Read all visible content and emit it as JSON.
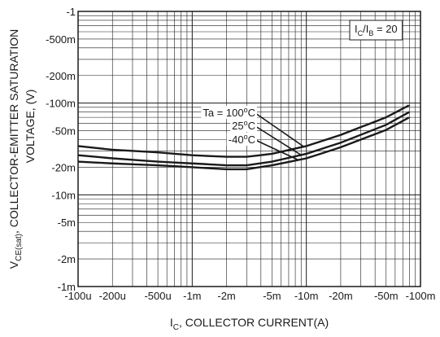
{
  "chart_data": {
    "type": "line",
    "x_scale": "log",
    "y_scale": "log",
    "xlabel_main": "I",
    "xlabel_sub": "C",
    "xlabel_rest": ", COLLECTOR CURRENT(A)",
    "ylabel_line1_main": "V",
    "ylabel_line1_sub": "CE(sat)",
    "ylabel_line1_rest": ",  COLLECTOR-EMITTER SATURATION",
    "ylabel_line2": "VOLTAGE, (V)",
    "xlim": [
      0.0001,
      0.1
    ],
    "ylim": [
      0.001,
      1
    ],
    "grid": true,
    "x_ticks": [
      {
        "v": 0.0001,
        "label": "-100u"
      },
      {
        "v": 0.0002,
        "label": "-200u"
      },
      {
        "v": 0.0005,
        "label": "-500u"
      },
      {
        "v": 0.001,
        "label": "-1m"
      },
      {
        "v": 0.002,
        "label": "-2m"
      },
      {
        "v": 0.005,
        "label": "-5m"
      },
      {
        "v": 0.01,
        "label": "-10m"
      },
      {
        "v": 0.02,
        "label": "-20m"
      },
      {
        "v": 0.05,
        "label": "-50m"
      },
      {
        "v": 0.1,
        "label": "-100m"
      }
    ],
    "y_ticks": [
      {
        "v": 1,
        "label": "-1"
      },
      {
        "v": 0.5,
        "label": "-500m"
      },
      {
        "v": 0.2,
        "label": "-200m"
      },
      {
        "v": 0.1,
        "label": "-100m"
      },
      {
        "v": 0.05,
        "label": "-50m"
      },
      {
        "v": 0.02,
        "label": "-20m"
      },
      {
        "v": 0.01,
        "label": "-10m"
      },
      {
        "v": 0.005,
        "label": "-5m"
      },
      {
        "v": 0.002,
        "label": "-2m"
      },
      {
        "v": 0.001,
        "label": "-1m"
      }
    ],
    "condition": {
      "main": "I",
      "sub1": "C",
      "slash": "/I",
      "sub2": "B",
      "rest": " = 20"
    },
    "series": [
      {
        "name": "Ta = 100°C",
        "x": [
          0.0001,
          0.0002,
          0.0005,
          0.001,
          0.002,
          0.003,
          0.005,
          0.01,
          0.02,
          0.05,
          0.08
        ],
        "y": [
          0.034,
          0.031,
          0.029,
          0.027,
          0.026,
          0.026,
          0.028,
          0.034,
          0.045,
          0.07,
          0.095
        ]
      },
      {
        "name": "25°C",
        "x": [
          0.0001,
          0.0002,
          0.0005,
          0.001,
          0.002,
          0.003,
          0.005,
          0.01,
          0.02,
          0.05,
          0.08
        ],
        "y": [
          0.027,
          0.025,
          0.023,
          0.022,
          0.021,
          0.021,
          0.023,
          0.028,
          0.037,
          0.058,
          0.08
        ]
      },
      {
        "name": "-40°C",
        "x": [
          0.0001,
          0.0002,
          0.0005,
          0.001,
          0.002,
          0.003,
          0.005,
          0.01,
          0.02,
          0.05,
          0.08
        ],
        "y": [
          0.023,
          0.022,
          0.021,
          0.02,
          0.019,
          0.019,
          0.021,
          0.025,
          0.033,
          0.051,
          0.07
        ]
      }
    ],
    "annotations": [
      {
        "label": "Ta = 100",
        "deg": "o",
        "unit": "C",
        "series": 0,
        "at_x": 0.0095
      },
      {
        "label": "25",
        "deg": "o",
        "unit": "C",
        "series": 1,
        "at_x": 0.009
      },
      {
        "label": "-40",
        "deg": "o",
        "unit": "C",
        "series": 2,
        "at_x": 0.0085
      }
    ]
  }
}
